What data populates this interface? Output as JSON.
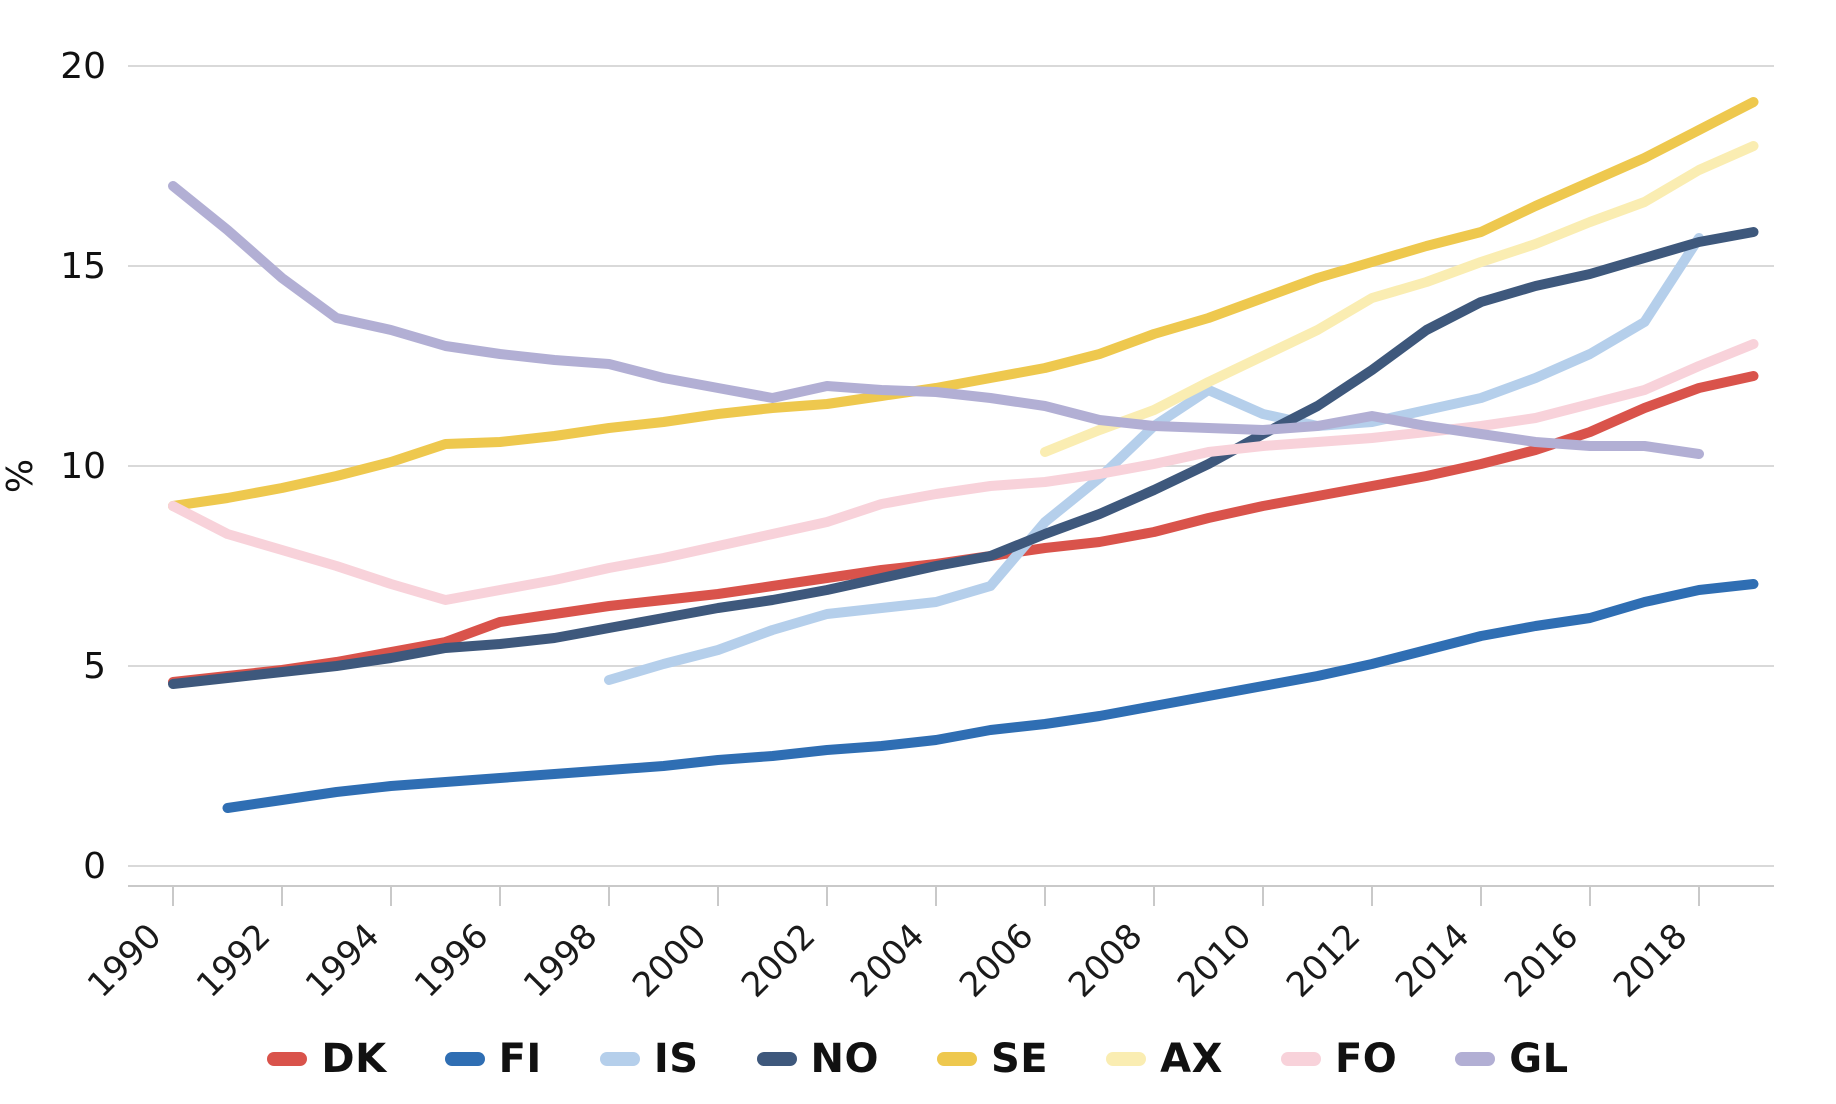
{
  "chart_data": {
    "type": "line",
    "title": "",
    "xlabel": "",
    "ylabel": "%",
    "ylim": [
      0,
      20
    ],
    "yticks": [
      0,
      5,
      10,
      15,
      20
    ],
    "xticks": [
      1990,
      1992,
      1994,
      1996,
      1998,
      2000,
      2002,
      2004,
      2006,
      2008,
      2010,
      2012,
      2014,
      2016,
      2018
    ],
    "x_range": [
      1990,
      2019
    ],
    "grid": "horizontal",
    "legend_position": "bottom",
    "axis_color": "#c9c9c9",
    "gridline_color": "#d9d9d9",
    "tick_label_color": "#1a1a1a",
    "series": [
      {
        "name": "DK",
        "color": "#d9534b",
        "start_year": 1990,
        "values": [
          4.6,
          4.75,
          4.9,
          5.1,
          5.35,
          5.6,
          6.1,
          6.3,
          6.5,
          6.65,
          6.8,
          7.0,
          7.2,
          7.4,
          7.55,
          7.75,
          7.95,
          8.1,
          8.35,
          8.7,
          9.0,
          9.25,
          9.5,
          9.75,
          10.05,
          10.4,
          10.85,
          11.45,
          11.95,
          12.25
        ]
      },
      {
        "name": "FI",
        "color": "#2f6eb3",
        "start_year": 1991,
        "values": [
          1.45,
          1.65,
          1.85,
          2.0,
          2.1,
          2.2,
          2.3,
          2.4,
          2.5,
          2.65,
          2.75,
          2.9,
          3.0,
          3.15,
          3.4,
          3.55,
          3.75,
          4.0,
          4.25,
          4.5,
          4.75,
          5.05,
          5.4,
          5.75,
          6.0,
          6.2,
          6.6,
          6.9,
          7.05
        ]
      },
      {
        "name": "IS",
        "color": "#b5cfeb",
        "start_year": 1998,
        "values": [
          4.65,
          5.05,
          5.4,
          5.9,
          6.3,
          6.45,
          6.6,
          7.0,
          8.6,
          9.7,
          11.0,
          11.9,
          11.3,
          11.0,
          11.1,
          11.4,
          11.7,
          12.2,
          12.8,
          13.6,
          15.7
        ]
      },
      {
        "name": "NO",
        "color": "#3e587c",
        "start_year": 1990,
        "values": [
          4.55,
          4.7,
          4.85,
          5.0,
          5.2,
          5.45,
          5.55,
          5.7,
          5.95,
          6.2,
          6.45,
          6.65,
          6.9,
          7.2,
          7.5,
          7.75,
          8.3,
          8.8,
          9.4,
          10.05,
          10.8,
          11.5,
          12.4,
          13.4,
          14.1,
          14.5,
          14.8,
          15.2,
          15.6,
          15.85
        ]
      },
      {
        "name": "SE",
        "color": "#eec84e",
        "start_year": 1990,
        "values": [
          9.0,
          9.2,
          9.45,
          9.75,
          10.1,
          10.55,
          10.6,
          10.75,
          10.95,
          11.1,
          11.3,
          11.45,
          11.55,
          11.75,
          11.95,
          12.2,
          12.45,
          12.8,
          13.3,
          13.7,
          14.2,
          14.7,
          15.1,
          15.5,
          15.85,
          16.5,
          17.1,
          17.7,
          18.4,
          19.1
        ]
      },
      {
        "name": "AX",
        "color": "#faedb2",
        "start_year": 2006,
        "values": [
          10.35,
          10.9,
          11.4,
          12.1,
          12.75,
          13.4,
          14.2,
          14.6,
          15.1,
          15.55,
          16.1,
          16.6,
          17.4,
          18.0
        ]
      },
      {
        "name": "FO",
        "color": "#f8d2da",
        "start_year": 1990,
        "values": [
          9.0,
          8.3,
          7.9,
          7.5,
          7.05,
          6.65,
          6.9,
          7.15,
          7.45,
          7.7,
          8.0,
          8.3,
          8.6,
          9.05,
          9.3,
          9.5,
          9.6,
          9.8,
          10.05,
          10.35,
          10.5,
          10.6,
          10.7,
          10.85,
          11.0,
          11.2,
          11.55,
          11.9,
          12.5,
          13.05
        ]
      },
      {
        "name": "GL",
        "color": "#b2afd4",
        "start_year": 1990,
        "values": [
          17.0,
          15.9,
          14.7,
          13.7,
          13.4,
          13.0,
          12.8,
          12.65,
          12.55,
          12.2,
          11.95,
          11.7,
          12.0,
          11.9,
          11.85,
          11.7,
          11.5,
          11.15,
          11.0,
          10.95,
          10.9,
          11.0,
          11.25,
          11.0,
          10.8,
          10.6,
          10.5,
          10.5,
          10.3
        ]
      }
    ]
  }
}
